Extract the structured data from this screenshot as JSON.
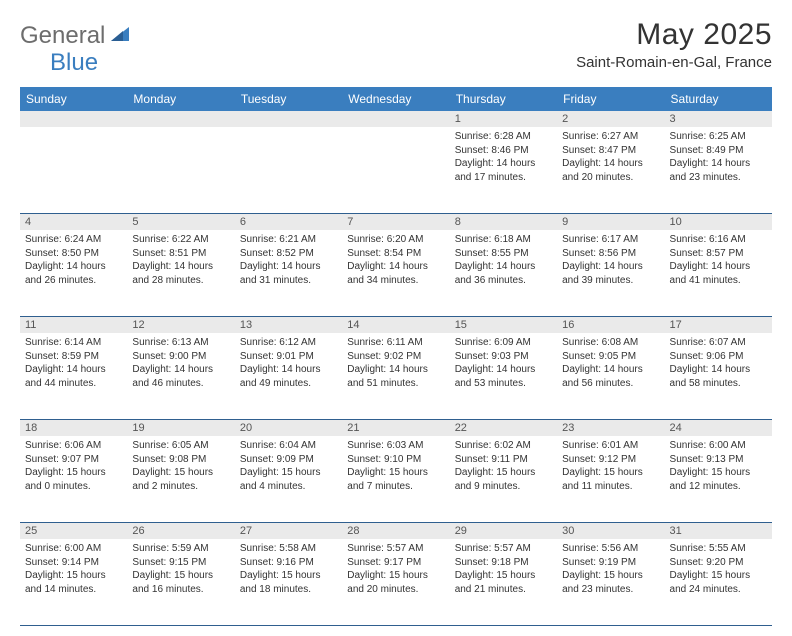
{
  "brand": {
    "general": "General",
    "blue": "Blue"
  },
  "title": "May 2025",
  "location": "Saint-Romain-en-Gal, France",
  "colors": {
    "header_bg": "#3a7ebf",
    "header_text": "#ffffff",
    "strip_bg": "#eaeaea",
    "border": "#2f5f8f",
    "text": "#333333",
    "logo_gray": "#6d6d6d",
    "logo_blue": "#3a7ebf"
  },
  "weekdays": [
    "Sunday",
    "Monday",
    "Tuesday",
    "Wednesday",
    "Thursday",
    "Friday",
    "Saturday"
  ],
  "weeks": [
    [
      null,
      null,
      null,
      null,
      {
        "n": "1",
        "sr": "Sunrise: 6:28 AM",
        "ss": "Sunset: 8:46 PM",
        "d1": "Daylight: 14 hours",
        "d2": "and 17 minutes."
      },
      {
        "n": "2",
        "sr": "Sunrise: 6:27 AM",
        "ss": "Sunset: 8:47 PM",
        "d1": "Daylight: 14 hours",
        "d2": "and 20 minutes."
      },
      {
        "n": "3",
        "sr": "Sunrise: 6:25 AM",
        "ss": "Sunset: 8:49 PM",
        "d1": "Daylight: 14 hours",
        "d2": "and 23 minutes."
      }
    ],
    [
      {
        "n": "4",
        "sr": "Sunrise: 6:24 AM",
        "ss": "Sunset: 8:50 PM",
        "d1": "Daylight: 14 hours",
        "d2": "and 26 minutes."
      },
      {
        "n": "5",
        "sr": "Sunrise: 6:22 AM",
        "ss": "Sunset: 8:51 PM",
        "d1": "Daylight: 14 hours",
        "d2": "and 28 minutes."
      },
      {
        "n": "6",
        "sr": "Sunrise: 6:21 AM",
        "ss": "Sunset: 8:52 PM",
        "d1": "Daylight: 14 hours",
        "d2": "and 31 minutes."
      },
      {
        "n": "7",
        "sr": "Sunrise: 6:20 AM",
        "ss": "Sunset: 8:54 PM",
        "d1": "Daylight: 14 hours",
        "d2": "and 34 minutes."
      },
      {
        "n": "8",
        "sr": "Sunrise: 6:18 AM",
        "ss": "Sunset: 8:55 PM",
        "d1": "Daylight: 14 hours",
        "d2": "and 36 minutes."
      },
      {
        "n": "9",
        "sr": "Sunrise: 6:17 AM",
        "ss": "Sunset: 8:56 PM",
        "d1": "Daylight: 14 hours",
        "d2": "and 39 minutes."
      },
      {
        "n": "10",
        "sr": "Sunrise: 6:16 AM",
        "ss": "Sunset: 8:57 PM",
        "d1": "Daylight: 14 hours",
        "d2": "and 41 minutes."
      }
    ],
    [
      {
        "n": "11",
        "sr": "Sunrise: 6:14 AM",
        "ss": "Sunset: 8:59 PM",
        "d1": "Daylight: 14 hours",
        "d2": "and 44 minutes."
      },
      {
        "n": "12",
        "sr": "Sunrise: 6:13 AM",
        "ss": "Sunset: 9:00 PM",
        "d1": "Daylight: 14 hours",
        "d2": "and 46 minutes."
      },
      {
        "n": "13",
        "sr": "Sunrise: 6:12 AM",
        "ss": "Sunset: 9:01 PM",
        "d1": "Daylight: 14 hours",
        "d2": "and 49 minutes."
      },
      {
        "n": "14",
        "sr": "Sunrise: 6:11 AM",
        "ss": "Sunset: 9:02 PM",
        "d1": "Daylight: 14 hours",
        "d2": "and 51 minutes."
      },
      {
        "n": "15",
        "sr": "Sunrise: 6:09 AM",
        "ss": "Sunset: 9:03 PM",
        "d1": "Daylight: 14 hours",
        "d2": "and 53 minutes."
      },
      {
        "n": "16",
        "sr": "Sunrise: 6:08 AM",
        "ss": "Sunset: 9:05 PM",
        "d1": "Daylight: 14 hours",
        "d2": "and 56 minutes."
      },
      {
        "n": "17",
        "sr": "Sunrise: 6:07 AM",
        "ss": "Sunset: 9:06 PM",
        "d1": "Daylight: 14 hours",
        "d2": "and 58 minutes."
      }
    ],
    [
      {
        "n": "18",
        "sr": "Sunrise: 6:06 AM",
        "ss": "Sunset: 9:07 PM",
        "d1": "Daylight: 15 hours",
        "d2": "and 0 minutes."
      },
      {
        "n": "19",
        "sr": "Sunrise: 6:05 AM",
        "ss": "Sunset: 9:08 PM",
        "d1": "Daylight: 15 hours",
        "d2": "and 2 minutes."
      },
      {
        "n": "20",
        "sr": "Sunrise: 6:04 AM",
        "ss": "Sunset: 9:09 PM",
        "d1": "Daylight: 15 hours",
        "d2": "and 4 minutes."
      },
      {
        "n": "21",
        "sr": "Sunrise: 6:03 AM",
        "ss": "Sunset: 9:10 PM",
        "d1": "Daylight: 15 hours",
        "d2": "and 7 minutes."
      },
      {
        "n": "22",
        "sr": "Sunrise: 6:02 AM",
        "ss": "Sunset: 9:11 PM",
        "d1": "Daylight: 15 hours",
        "d2": "and 9 minutes."
      },
      {
        "n": "23",
        "sr": "Sunrise: 6:01 AM",
        "ss": "Sunset: 9:12 PM",
        "d1": "Daylight: 15 hours",
        "d2": "and 11 minutes."
      },
      {
        "n": "24",
        "sr": "Sunrise: 6:00 AM",
        "ss": "Sunset: 9:13 PM",
        "d1": "Daylight: 15 hours",
        "d2": "and 12 minutes."
      }
    ],
    [
      {
        "n": "25",
        "sr": "Sunrise: 6:00 AM",
        "ss": "Sunset: 9:14 PM",
        "d1": "Daylight: 15 hours",
        "d2": "and 14 minutes."
      },
      {
        "n": "26",
        "sr": "Sunrise: 5:59 AM",
        "ss": "Sunset: 9:15 PM",
        "d1": "Daylight: 15 hours",
        "d2": "and 16 minutes."
      },
      {
        "n": "27",
        "sr": "Sunrise: 5:58 AM",
        "ss": "Sunset: 9:16 PM",
        "d1": "Daylight: 15 hours",
        "d2": "and 18 minutes."
      },
      {
        "n": "28",
        "sr": "Sunrise: 5:57 AM",
        "ss": "Sunset: 9:17 PM",
        "d1": "Daylight: 15 hours",
        "d2": "and 20 minutes."
      },
      {
        "n": "29",
        "sr": "Sunrise: 5:57 AM",
        "ss": "Sunset: 9:18 PM",
        "d1": "Daylight: 15 hours",
        "d2": "and 21 minutes."
      },
      {
        "n": "30",
        "sr": "Sunrise: 5:56 AM",
        "ss": "Sunset: 9:19 PM",
        "d1": "Daylight: 15 hours",
        "d2": "and 23 minutes."
      },
      {
        "n": "31",
        "sr": "Sunrise: 5:55 AM",
        "ss": "Sunset: 9:20 PM",
        "d1": "Daylight: 15 hours",
        "d2": "and 24 minutes."
      }
    ]
  ]
}
